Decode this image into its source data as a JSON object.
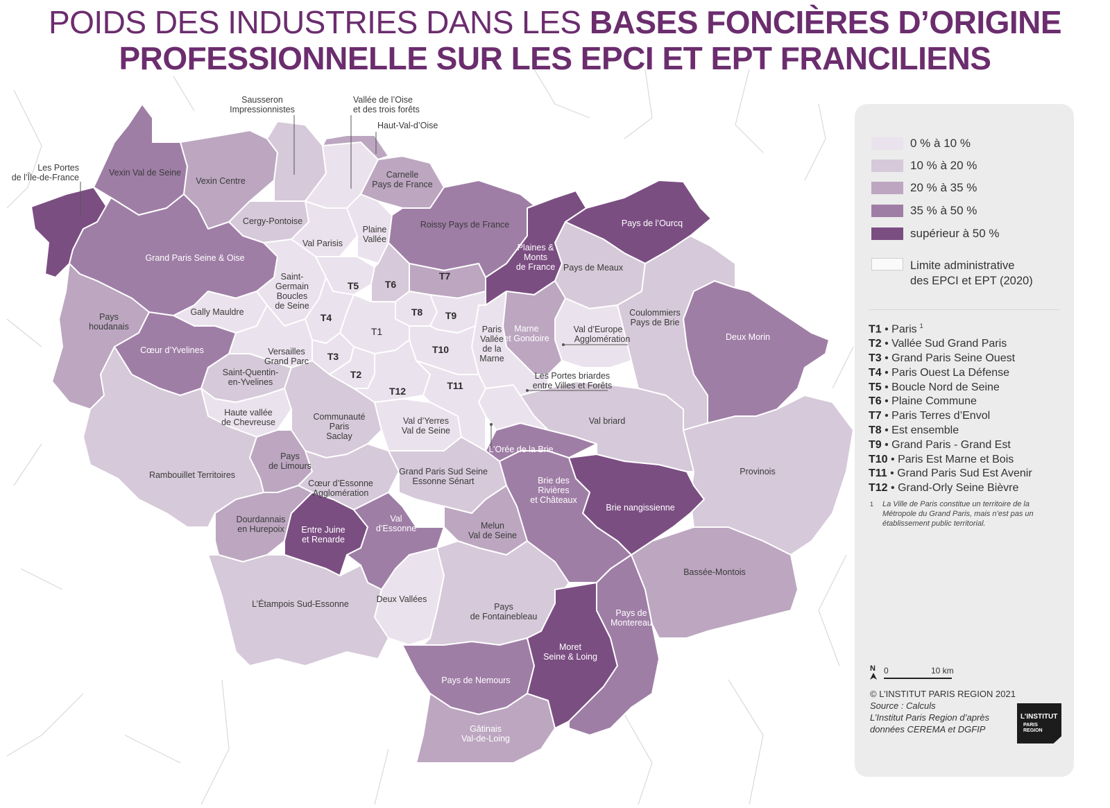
{
  "title": {
    "line1_regular": "POIDS DES INDUSTRIES DANS LES ",
    "line1_bold": "BASES FONCIÈRES D’ORIGINE",
    "line2_bold": "PROFESSIONNELLE SUR LES EPCI ET EPT FRANCILIENS"
  },
  "colors": {
    "class_0_10": "#eae2ec",
    "class_10_20": "#d6c9d9",
    "class_20_35": "#bca6c0",
    "class_35_50": "#9f7ea6",
    "class_50_plus": "#7b4e82",
    "title": "#6b2d6e",
    "boundary": "#ffffff",
    "communes": "#d7d7d7"
  },
  "legend": {
    "classes": [
      {
        "label": "0 % à 10 %",
        "key": "class_0_10"
      },
      {
        "label": "10 % à 20 %",
        "key": "class_10_20"
      },
      {
        "label": "20 % à 35 %",
        "key": "class_20_35"
      },
      {
        "label": "35 % à 50 %",
        "key": "class_35_50"
      },
      {
        "label": "supérieur à 50 %",
        "key": "class_50_plus"
      }
    ],
    "boundary_line1": "Limite administrative",
    "boundary_line2": "des EPCI et EPT (2020)",
    "territories": [
      {
        "code": "T1",
        "name": "Paris",
        "sup": "1"
      },
      {
        "code": "T2",
        "name": "Vallée Sud Grand Paris"
      },
      {
        "code": "T3",
        "name": "Grand Paris Seine Ouest"
      },
      {
        "code": "T4",
        "name": "Paris Ouest La Défense"
      },
      {
        "code": "T5",
        "name": "Boucle Nord de Seine"
      },
      {
        "code": "T6",
        "name": "Plaine Commune"
      },
      {
        "code": "T7",
        "name": "Paris Terres d’Envol"
      },
      {
        "code": "T8",
        "name": "Est ensemble"
      },
      {
        "code": "T9",
        "name": "Grand Paris - Grand Est"
      },
      {
        "code": "T10",
        "name": "Paris Est Marne et Bois"
      },
      {
        "code": "T11",
        "name": "Grand Paris Sud Est Avenir"
      },
      {
        "code": "T12",
        "name": "Grand-Orly Seine Bièvre"
      }
    ],
    "note_marker": "1",
    "note": "La Ville de Paris constitue un territoire de la Métropole du Grand Paris, mais n’est pas un établissement public territorial.",
    "north": "N",
    "scale_zero": "0",
    "scale_label": "10 km",
    "copyright": "© L’INSTITUT PARIS REGION 2021",
    "source_line1": "Source : Calculs",
    "source_line2": "L’Institut Paris Region d’après",
    "source_line3": "données CEREMA et DGFIP",
    "logo_line1": "L’INSTITUT",
    "logo_line2": "PARIS",
    "logo_line3": "REGION"
  },
  "regions": [
    {
      "name": "Les Portes de l’Île-de-France",
      "class": "class_50_plus"
    },
    {
      "name": "Vexin Val de Seine",
      "class": "class_35_50"
    },
    {
      "name": "Vexin Centre",
      "class": "class_20_35"
    },
    {
      "name": "Sausseron Impressionnistes",
      "class": "class_10_20"
    },
    {
      "name": "Vallée de l’Oise et des trois forêts",
      "class": "class_0_10"
    },
    {
      "name": "Haut-Val-d’Oise",
      "class": "class_20_35"
    },
    {
      "name": "Carnelle Pays de France",
      "class": "class_20_35"
    },
    {
      "name": "Cergy-Pontoise",
      "class": "class_10_20"
    },
    {
      "name": "Val Parisis",
      "class": "class_0_10"
    },
    {
      "name": "Plaine Vallée",
      "class": "class_0_10"
    },
    {
      "name": "Roissy Pays de France",
      "class": "class_35_50"
    },
    {
      "name": "Plaines & Monts de France",
      "class": "class_50_plus"
    },
    {
      "name": "Pays de l’Ourcq",
      "class": "class_50_plus"
    },
    {
      "name": "Pays de Meaux",
      "class": "class_10_20"
    },
    {
      "name": "Grand Paris Seine & Oise",
      "class": "class_35_50"
    },
    {
      "name": "Pays houdanais",
      "class": "class_20_35"
    },
    {
      "name": "Gally Mauldre",
      "class": "class_0_10"
    },
    {
      "name": "Saint-Germain Boucles de Seine",
      "class": "class_0_10"
    },
    {
      "name": "Cœur d’Yvelines",
      "class": "class_35_50"
    },
    {
      "name": "Versailles Grand Parc",
      "class": "class_0_10"
    },
    {
      "name": "Saint-Quentin-en-Yvelines",
      "class": "class_10_20"
    },
    {
      "name": "Haute vallée de Chevreuse",
      "class": "class_0_10"
    },
    {
      "name": "Communauté Paris Saclay",
      "class": "class_10_20"
    },
    {
      "name": "Rambouillet Territoires",
      "class": "class_10_20"
    },
    {
      "name": "Pays de Limours",
      "class": "class_20_35"
    },
    {
      "name": "Cœur d’Essonne Agglomération",
      "class": "class_10_20"
    },
    {
      "name": "Dourdannais en Hurepoix",
      "class": "class_20_35"
    },
    {
      "name": "Entre Juine et Renarde",
      "class": "class_50_plus"
    },
    {
      "name": "Val d’Essonne",
      "class": "class_35_50"
    },
    {
      "name": "L’Étampois Sud-Essonne",
      "class": "class_10_20"
    },
    {
      "name": "Deux Vallées",
      "class": "class_0_10"
    },
    {
      "name": "Val d’Yerres Val de Seine",
      "class": "class_0_10"
    },
    {
      "name": "Grand Paris Sud Seine Essonne Sénart",
      "class": "class_10_20"
    },
    {
      "name": "Melun Val de Seine",
      "class": "class_20_35"
    },
    {
      "name": "Pays de Fontainebleau",
      "class": "class_10_20"
    },
    {
      "name": "Pays de Nemours",
      "class": "class_35_50"
    },
    {
      "name": "Gâtinais Val-de-Loing",
      "class": "class_20_35"
    },
    {
      "name": "Moret Seine & Loing",
      "class": "class_50_plus"
    },
    {
      "name": "Pays de Montereau",
      "class": "class_35_50"
    },
    {
      "name": "Bassée-Montois",
      "class": "class_20_35"
    },
    {
      "name": "Provinois",
      "class": "class_10_20"
    },
    {
      "name": "Brie nangissienne",
      "class": "class_50_plus"
    },
    {
      "name": "Brie des Rivières et Châteaux",
      "class": "class_35_50"
    },
    {
      "name": "L’Orée de la Brie",
      "class": "class_35_50"
    },
    {
      "name": "Val briard",
      "class": "class_10_20"
    },
    {
      "name": "Les Portes briardes entre Villes et Forêts",
      "class": "class_0_10"
    },
    {
      "name": "Deux Morin",
      "class": "class_35_50"
    },
    {
      "name": "Coulommiers Pays de Brie",
      "class": "class_10_20"
    },
    {
      "name": "Val d’Europe Agglomération",
      "class": "class_0_10"
    },
    {
      "name": "Marne et Gondoire",
      "class": "class_20_35"
    },
    {
      "name": "Paris Vallée de la Marne",
      "class": "class_0_10"
    },
    {
      "name": "T1",
      "class": "class_0_10"
    },
    {
      "name": "T2",
      "class": "class_0_10"
    },
    {
      "name": "T3",
      "class": "class_0_10"
    },
    {
      "name": "T4",
      "class": "class_0_10"
    },
    {
      "name": "T5",
      "class": "class_0_10"
    },
    {
      "name": "T6",
      "class": "class_10_20"
    },
    {
      "name": "T7",
      "class": "class_20_35"
    },
    {
      "name": "T8",
      "class": "class_0_10"
    },
    {
      "name": "T9",
      "class": "class_0_10"
    },
    {
      "name": "T10",
      "class": "class_0_10"
    },
    {
      "name": "T11",
      "class": "class_0_10"
    },
    {
      "name": "T12",
      "class": "class_0_10"
    }
  ],
  "labels": {
    "portes_1": "Les Portes",
    "portes_2": "de l’Île-de-France",
    "vexinvds": "Vexin Val de Seine",
    "vexinc": "Vexin Centre",
    "sauss_1": "Sausseron",
    "sauss_2": "Impressionnistes",
    "vallee_1": "Vallée de l’Oise",
    "vallee_2": "et des trois forêts",
    "hvo": "Haut-Val-d’Oise",
    "carnelle_1": "Carnelle",
    "carnelle_2": "Pays de France",
    "cergy": "Cergy-Pontoise",
    "valparisis": "Val Parisis",
    "plaine_1": "Plaine",
    "plaine_2": "Vallée",
    "roissy": "Roissy Pays de France",
    "pmf_1": "Plaines &",
    "pmf_2": "Monts",
    "pmf_3": "de France",
    "ourcq": "Pays de l’Ourcq",
    "meaux": "Pays de Meaux",
    "gpso": "Grand Paris Seine & Oise",
    "houd_1": "Pays",
    "houd_2": "houdanais",
    "gally": "Gally Mauldre",
    "sg_1": "Saint-",
    "sg_2": "Germain",
    "sg_3": "Boucles",
    "sg_4": "de Seine",
    "coeury": "Cœur d’Yvelines",
    "vers_1": "Versailles",
    "vers_2": "Grand Parc",
    "sqy_1": "Saint-Quentin-",
    "sqy_2": "en-Yvelines",
    "hvc_1": "Haute vallée",
    "hvc_2": "de Chevreuse",
    "saclay_1": "Communauté",
    "saclay_2": "Paris",
    "saclay_3": "Saclay",
    "ramb": "Rambouillet Territoires",
    "limours_1": "Pays",
    "limours_2": "de Limours",
    "coeure_1": "Cœur d’Essonne",
    "coeure_2": "Agglomération",
    "dourd_1": "Dourdannais",
    "dourd_2": "en Hurepoix",
    "ejr_1": "Entre Juine",
    "ejr_2": "et Renarde",
    "vess_1": "Val",
    "vess_2": "d’Essonne",
    "etampois": "L’Étampois Sud-Essonne",
    "deuxv": "Deux Vallées",
    "vyvs_1": "Val d’Yerres",
    "vyvs_2": "Val de Seine",
    "gpsse_1": "Grand Paris Sud Seine",
    "gpsse_2": "Essonne Sénart",
    "melun_1": "Melun",
    "melun_2": "Val de Seine",
    "fontb_1": "Pays",
    "fontb_2": "de Fontainebleau",
    "nemours": "Pays de Nemours",
    "gatinais_1": "Gâtinais",
    "gatinais_2": "Val-de-Loing",
    "moret_1": "Moret",
    "moret_2": "Seine & Loing",
    "montereau_1": "Pays de",
    "montereau_2": "Montereau",
    "bassee": "Bassée-Montois",
    "provinois": "Provinois",
    "brien": "Brie nangissienne",
    "briedr_1": "Brie des",
    "briedr_2": "Rivières",
    "briedr_3": "et Châteaux",
    "oree": "L’Orée de la Brie",
    "valbriard": "Val briard",
    "portesb_1": "Les Portes briardes",
    "portesb_2": "entre Villes et Forêts",
    "deuxmorin": "Deux Morin",
    "coulom_1": "Coulommiers",
    "coulom_2": "Pays de Brie",
    "valeur_1": "Val d’Europe",
    "valeur_2": "Agglomération",
    "marneg_1": "Marne",
    "marneg_2": "et Gondoire",
    "pvm_1": "Paris",
    "pvm_2": "Vallée",
    "pvm_3": "de la",
    "pvm_4": "Marne",
    "t1": "T1",
    "t2": "T2",
    "t3": "T3",
    "t4": "T4",
    "t5": "T5",
    "t6": "T6",
    "t7": "T7",
    "t8": "T8",
    "t9": "T9",
    "t10": "T10",
    "t11": "T11",
    "t12": "T12"
  }
}
